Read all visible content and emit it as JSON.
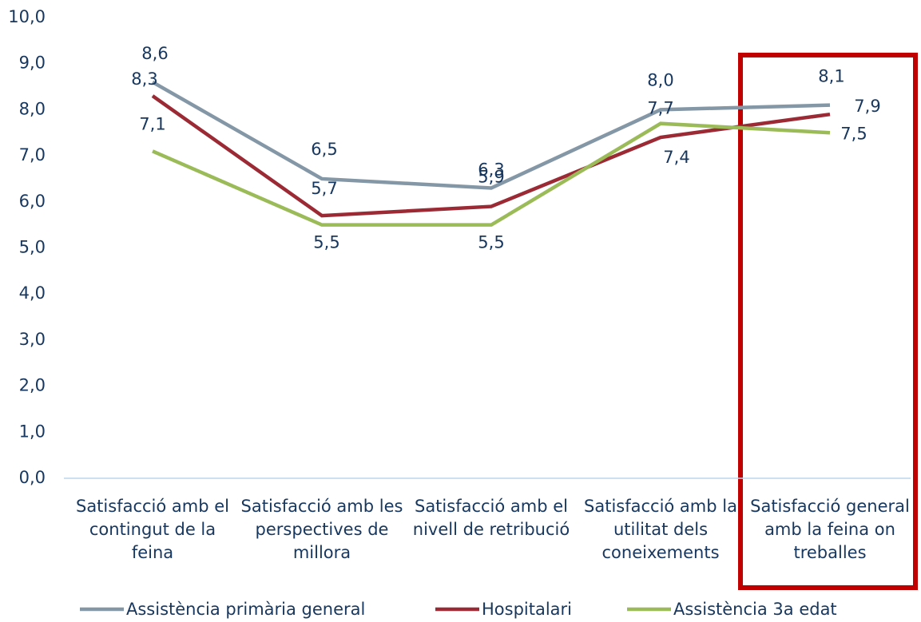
{
  "chart_data": {
    "type": "line",
    "categories": [
      "Satisfacció amb el contingut de la feina",
      "Satisfacció amb les perspectives de millora",
      "Satisfacció amb el nivell de retribució",
      "Satisfacció amb la utilitat dels coneixements",
      "Satisfacció general amb la feina on treballes"
    ],
    "series": [
      {
        "name": "Assistència primària general",
        "color": "#8497a6",
        "values": [
          8.6,
          6.5,
          6.3,
          8.0,
          8.1
        ],
        "value_labels": [
          "8,6",
          "6,5",
          "6,3",
          "8,0",
          "8,1"
        ]
      },
      {
        "name": "Hospitalari",
        "color": "#9b2a35",
        "values": [
          8.3,
          5.7,
          5.9,
          7.4,
          7.9
        ],
        "value_labels": [
          "8,3",
          "5,7",
          "5,9",
          "7,4",
          "7,9"
        ]
      },
      {
        "name": "Assistència 3a edat",
        "color": "#9bbb59",
        "values": [
          7.1,
          5.5,
          5.5,
          7.7,
          7.5
        ],
        "value_labels": [
          "7,1",
          "5,5",
          "5,5",
          "7,7",
          "7,5"
        ]
      }
    ],
    "ylim": [
      0,
      10
    ],
    "yticks": [
      {
        "value": 0,
        "label": "0,0"
      },
      {
        "value": 1,
        "label": "1,0"
      },
      {
        "value": 2,
        "label": "2,0"
      },
      {
        "value": 3,
        "label": "3,0"
      },
      {
        "value": 4,
        "label": "4,0"
      },
      {
        "value": 5,
        "label": "5,0"
      },
      {
        "value": 6,
        "label": "6,0"
      },
      {
        "value": 7,
        "label": "7,0"
      },
      {
        "value": 8,
        "label": "8,0"
      },
      {
        "value": 9,
        "label": "9,0"
      },
      {
        "value": 10,
        "label": "10,0"
      }
    ],
    "grid": false,
    "legend": "bottom"
  }
}
